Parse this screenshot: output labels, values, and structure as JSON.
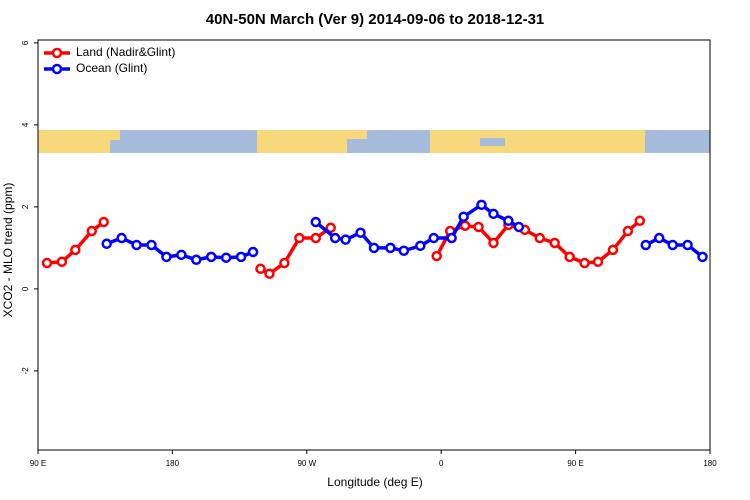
{
  "chart_data": {
    "type": "line",
    "title": "40N-50N March (Ver 9)   2014-09-06 to 2018-12-31",
    "x_label": "Longitude (deg E)",
    "y_label": "XCO2 - MLO trend (ppm)",
    "xlim": [
      90,
      540
    ],
    "xticks": [
      {
        "value": 90,
        "label": "90 E"
      },
      {
        "value": 180,
        "label": "180"
      },
      {
        "value": 270,
        "label": "90 W"
      },
      {
        "value": 360,
        "label": "0"
      },
      {
        "value": 450,
        "label": "90 E"
      },
      {
        "value": 540,
        "label": "180"
      }
    ],
    "ylim": [
      -3.93,
      6.07
    ],
    "yticks": [
      -2,
      0,
      2,
      4,
      6
    ],
    "legend": "top-left",
    "series": [
      {
        "name": "Land (Nadir&Glint)",
        "color": "#ff0000",
        "x": [
          96,
          106,
          115,
          126,
          134,
          null,
          239,
          245,
          255,
          265,
          276,
          286,
          null,
          357,
          366,
          376,
          385,
          395,
          405,
          416,
          426,
          436,
          446,
          456,
          465,
          475,
          485,
          493
        ],
        "values": [
          0.63,
          0.66,
          0.95,
          1.41,
          1.63,
          null,
          0.49,
          0.37,
          0.63,
          1.24,
          1.24,
          1.49,
          null,
          0.8,
          1.41,
          1.54,
          1.51,
          1.12,
          1.56,
          1.44,
          1.24,
          1.12,
          0.78,
          0.63,
          0.66,
          0.95,
          1.41,
          1.66
        ]
      },
      {
        "name": "Ocean (Glint)",
        "color": "#0000ff",
        "x": [
          136,
          146,
          156,
          166,
          176,
          186,
          196,
          206,
          216,
          226,
          234,
          null,
          276,
          289,
          296,
          306,
          315,
          326,
          335,
          346,
          355,
          367,
          375,
          387,
          395,
          405,
          412,
          null,
          497,
          506,
          515,
          525,
          535
        ],
        "values": [
          1.1,
          1.24,
          1.07,
          1.07,
          0.78,
          0.83,
          0.71,
          0.78,
          0.76,
          0.78,
          0.9,
          null,
          1.63,
          1.24,
          1.2,
          1.37,
          1.0,
          1.0,
          0.93,
          1.05,
          1.24,
          1.24,
          1.76,
          2.05,
          1.83,
          1.66,
          1.51,
          null,
          1.07,
          1.24,
          1.07,
          1.07,
          0.78
        ]
      }
    ]
  }
}
